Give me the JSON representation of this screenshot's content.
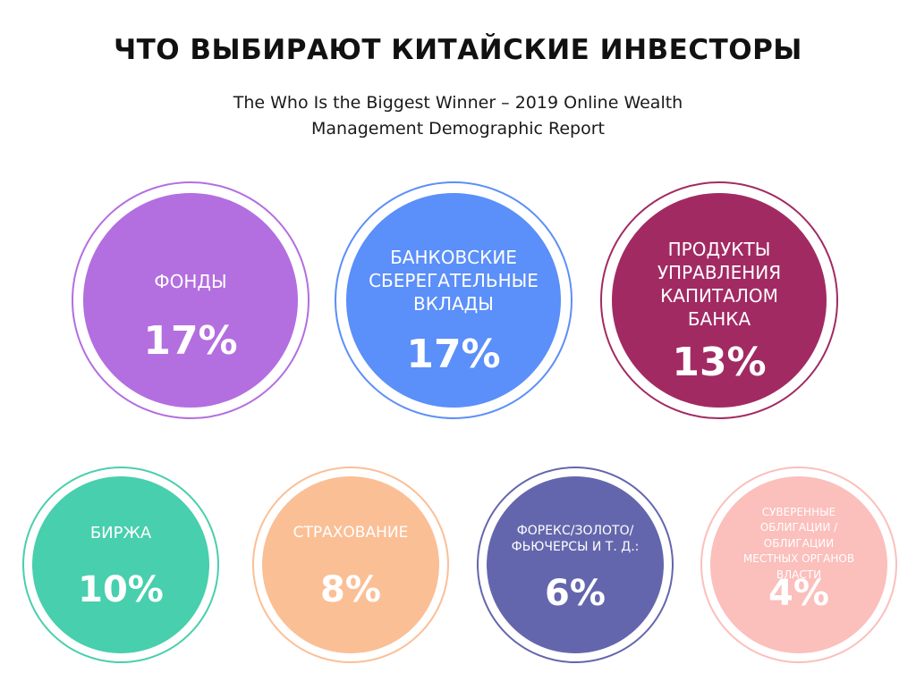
{
  "header": {
    "title": "ЧТО ВЫБИРАЮТ КИТАЙСКИЕ ИНВЕСТОРЫ",
    "subtitle_line1": "The Who Is the Biggest Winner – 2019 Online Wealth",
    "subtitle_line2": "Management Demographic Report"
  },
  "categories": [
    {
      "label_lines": [
        "ФОНДЫ"
      ],
      "value": "17%",
      "color": "#b36ee0"
    },
    {
      "label_lines": [
        "БАНКОВСКИЕ",
        "СБЕРЕГАТЕЛЬНЫЕ",
        "ВКЛАДЫ"
      ],
      "value": "17%",
      "color": "#5b8ff9"
    },
    {
      "label_lines": [
        "ПРОДУКТЫ",
        "УПРАВЛЕНИЯ",
        "КАПИТАЛОМ",
        "БАНКА"
      ],
      "value": "13%",
      "color": "#a22a63"
    },
    {
      "label_lines": [
        "БИРЖА"
      ],
      "value": "10%",
      "color": "#48cfad"
    },
    {
      "label_lines": [
        "СТРАХОВАНИЕ"
      ],
      "value": "8%",
      "color": "#fbbf96"
    },
    {
      "label_lines": [
        "ФОРЕКС/ЗОЛОТО/",
        "ФЬЮЧЕРСЫ И Т. Д.:"
      ],
      "value": "6%",
      "color": "#6466ad"
    },
    {
      "label_lines": [
        "СУВЕРЕННЫЕ",
        "ОБЛИГАЦИИ /",
        "ОБЛИГАЦИИ",
        "МЕСТНЫХ ОРГАНОВ",
        "ВЛАСТИ"
      ],
      "value": "4%",
      "color": "#fbbfbc"
    }
  ]
}
